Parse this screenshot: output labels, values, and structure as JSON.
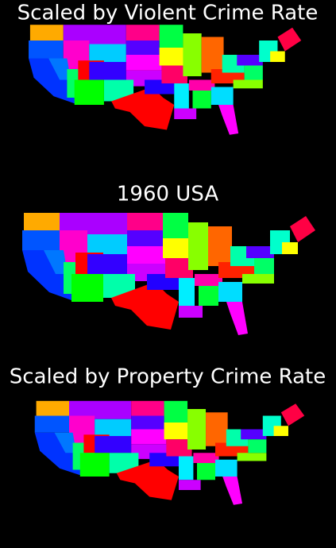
{
  "panels": [
    {
      "title": "Scaled by Violent Crime Rate"
    },
    {
      "title": "1960 USA"
    },
    {
      "title": "Scaled by Property Crime Rate"
    }
  ]
}
